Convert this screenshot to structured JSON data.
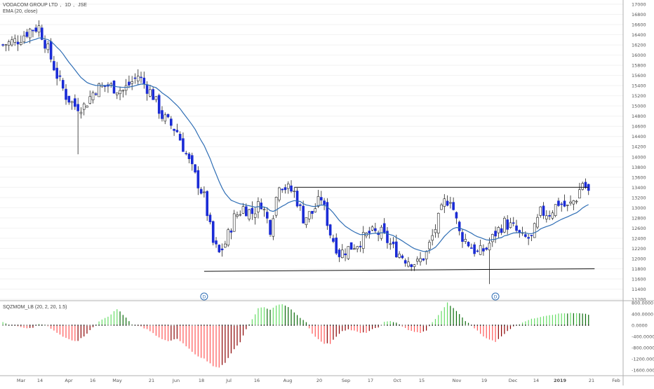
{
  "header": {
    "symbol": "VODACOM GROUP LTD",
    "timeframe": "1D",
    "exchange": "JSE",
    "ema_label": "EMA (20, close)"
  },
  "indicator": {
    "label": "SQZMOM_LB (20, 2, 20, 1.5)"
  },
  "colors": {
    "up_body": "#ffffff",
    "down_body": "#1a2bd6",
    "wick": "#222222",
    "ema": "#2f6eb5",
    "trendline": "#111111",
    "hist_up_strong": "#66dd66",
    "hist_up_weak": "#0a6b0a",
    "hist_down_strong": "#ff5555",
    "hist_down_weak": "#8b0000",
    "squeeze_dot_on": "#222222",
    "squeeze_dot_off": "#777777",
    "marker": "#2f6eb5"
  },
  "chart_data": [
    {
      "type": "candlestick",
      "title": "VODACOM GROUP LTD, 1D, JSE",
      "x_tick_labels": [
        "Mar",
        "14",
        "Apr",
        "16",
        "May",
        "21",
        "Jun",
        "18",
        "Jul",
        "16",
        "Aug",
        "20",
        "Sep",
        "17",
        "Oct",
        "15",
        "Nov",
        "19",
        "Dec",
        "14",
        "2019",
        "21",
        "Feb"
      ],
      "y_tick_labels": [
        "17000",
        "16800",
        "16600",
        "16400",
        "16200",
        "16000",
        "15800",
        "15600",
        "15400",
        "15200",
        "15000",
        "14800",
        "14600",
        "14400",
        "14200",
        "14000",
        "13800",
        "13600",
        "13400",
        "13200",
        "13000",
        "12800",
        "12600",
        "12400",
        "12200",
        "12000",
        "11800",
        "11600",
        "11400",
        "11200"
      ],
      "ylim": [
        11200,
        17000
      ],
      "close_profile": [
        [
          0,
          16200
        ],
        [
          5,
          16300
        ],
        [
          9,
          16500
        ],
        [
          12,
          16550
        ],
        [
          15,
          16100
        ],
        [
          18,
          15600
        ],
        [
          21,
          15200
        ],
        [
          24,
          15000
        ],
        [
          27,
          15000
        ],
        [
          31,
          15350
        ],
        [
          35,
          15400
        ],
        [
          40,
          15300
        ],
        [
          45,
          15600
        ],
        [
          50,
          15200
        ],
        [
          53,
          14800
        ],
        [
          58,
          14500
        ],
        [
          62,
          13900
        ],
        [
          67,
          13200
        ],
        [
          70,
          12300
        ],
        [
          72,
          12100
        ],
        [
          74,
          12300
        ],
        [
          77,
          12800
        ],
        [
          80,
          13000
        ],
        [
          83,
          12900
        ],
        [
          86,
          13100
        ],
        [
          89,
          12600
        ],
        [
          92,
          13500
        ],
        [
          94,
          13400
        ],
        [
          97,
          13300
        ],
        [
          100,
          12800
        ],
        [
          103,
          12900
        ],
        [
          106,
          13200
        ],
        [
          109,
          12500
        ],
        [
          112,
          12100
        ],
        [
          115,
          12200
        ],
        [
          118,
          12300
        ],
        [
          122,
          12500
        ],
        [
          126,
          12500
        ],
        [
          130,
          12200
        ],
        [
          134,
          12000
        ],
        [
          138,
          11900
        ],
        [
          141,
          12100
        ],
        [
          144,
          12600
        ],
        [
          147,
          13100
        ],
        [
          149,
          13200
        ],
        [
          152,
          12500
        ],
        [
          155,
          12300
        ],
        [
          158,
          12100
        ],
        [
          161,
          12200
        ],
        [
          164,
          12500
        ],
        [
          167,
          12700
        ],
        [
          170,
          12600
        ],
        [
          173,
          12400
        ],
        [
          176,
          12400
        ],
        [
          179,
          12900
        ],
        [
          182,
          12900
        ],
        [
          185,
          13100
        ],
        [
          188,
          13000
        ],
        [
          191,
          13200
        ],
        [
          193,
          13500
        ],
        [
          195,
          13300
        ]
      ],
      "ema": {
        "period": 20,
        "label": "EMA (20, close)"
      },
      "annotations": [
        {
          "type": "trendline",
          "label": "resistance",
          "y": 13400,
          "from_bar": 97,
          "to_bar": 195
        },
        {
          "type": "trendline",
          "label": "support",
          "y_start": 11750,
          "y_end": 11800,
          "from_bar": 67,
          "to_bar": 197
        },
        {
          "type": "event-marker",
          "label": "D",
          "bar": 67
        },
        {
          "type": "event-marker",
          "label": "D",
          "bar": 164
        }
      ]
    },
    {
      "type": "bar",
      "title": "SQZMOM_LB (20, 2, 20, 1.5)",
      "y_tick_labels": [
        "800.0000",
        "400.0000",
        "0.0000",
        "-400.0000",
        "-800.0000",
        "-1200.0000",
        "-1600.0000"
      ],
      "ylim": [
        -1700,
        800
      ],
      "momentum_profile": [
        [
          0,
          100
        ],
        [
          2,
          0
        ],
        [
          5,
          -30
        ],
        [
          8,
          -120
        ],
        [
          10,
          -80
        ],
        [
          12,
          50
        ],
        [
          14,
          30
        ],
        [
          17,
          -200
        ],
        [
          20,
          -420
        ],
        [
          23,
          -550
        ],
        [
          25,
          -560
        ],
        [
          28,
          -300
        ],
        [
          32,
          150
        ],
        [
          35,
          300
        ],
        [
          38,
          580
        ],
        [
          41,
          280
        ],
        [
          43,
          30
        ],
        [
          46,
          -50
        ],
        [
          49,
          -200
        ],
        [
          52,
          -450
        ],
        [
          55,
          -580
        ],
        [
          58,
          -480
        ],
        [
          61,
          -750
        ],
        [
          64,
          -1050
        ],
        [
          67,
          -1200
        ],
        [
          70,
          -1450
        ],
        [
          72,
          -1500
        ],
        [
          74,
          -1350
        ],
        [
          76,
          -1000
        ],
        [
          79,
          -600
        ],
        [
          81,
          -150
        ],
        [
          83,
          200
        ],
        [
          85,
          600
        ],
        [
          87,
          650
        ],
        [
          89,
          550
        ],
        [
          91,
          700
        ],
        [
          93,
          750
        ],
        [
          95,
          660
        ],
        [
          97,
          470
        ],
        [
          99,
          250
        ],
        [
          101,
          100
        ],
        [
          103,
          -300
        ],
        [
          105,
          -500
        ],
        [
          107,
          -650
        ],
        [
          109,
          -660
        ],
        [
          111,
          -400
        ],
        [
          113,
          -200
        ],
        [
          115,
          -150
        ],
        [
          117,
          -200
        ],
        [
          119,
          -280
        ],
        [
          121,
          -260
        ],
        [
          123,
          -150
        ],
        [
          125,
          -80
        ],
        [
          127,
          110
        ],
        [
          129,
          140
        ],
        [
          131,
          100
        ],
        [
          133,
          -40
        ],
        [
          135,
          -180
        ],
        [
          137,
          -230
        ],
        [
          139,
          -280
        ],
        [
          141,
          -180
        ],
        [
          143,
          100
        ],
        [
          146,
          500
        ],
        [
          148,
          800
        ],
        [
          150,
          600
        ],
        [
          152,
          400
        ],
        [
          154,
          150
        ],
        [
          156,
          0
        ],
        [
          158,
          -200
        ],
        [
          160,
          -400
        ],
        [
          162,
          -500
        ],
        [
          164,
          -600
        ],
        [
          166,
          -400
        ],
        [
          168,
          -200
        ],
        [
          170,
          -50
        ],
        [
          172,
          50
        ],
        [
          174,
          150
        ],
        [
          177,
          250
        ],
        [
          180,
          330
        ],
        [
          183,
          380
        ],
        [
          186,
          420
        ],
        [
          189,
          430
        ],
        [
          192,
          420
        ],
        [
          195,
          380
        ]
      ]
    }
  ]
}
